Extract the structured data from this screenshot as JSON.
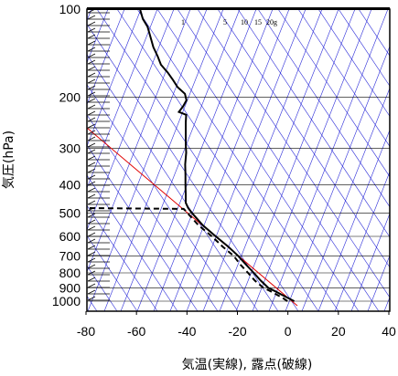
{
  "chart_data": {
    "type": "line",
    "xlabel": "気温(実線), 露点(破線)",
    "ylabel": "気圧(hPa)",
    "x_ticks": [
      -80,
      -60,
      -40,
      -20,
      0,
      20,
      40
    ],
    "y_ticks": [
      100,
      200,
      300,
      400,
      500,
      600,
      700,
      800,
      900,
      1000
    ],
    "xlim": [
      -80,
      40
    ],
    "ylim": [
      1050,
      100
    ],
    "y_scale": "log",
    "mixing_ratio_labels": [
      "1",
      "5",
      "10",
      "15",
      "20g"
    ],
    "colors": {
      "guide_lines": "#2a2ad8",
      "reference_line": "#e00000",
      "temperature": "#000000",
      "dewpoint": "#000000"
    },
    "series": [
      {
        "kind": "temperature",
        "style": "solid",
        "points": [
          [
            2.5,
            1000
          ],
          [
            0,
            975
          ],
          [
            -2.5,
            950
          ],
          [
            -5,
            925
          ],
          [
            -7.8,
            900
          ],
          [
            -10.8,
            850
          ],
          [
            -13.5,
            800
          ],
          [
            -16.6,
            750
          ],
          [
            -19.7,
            700
          ],
          [
            -23.7,
            650
          ],
          [
            -28.6,
            600
          ],
          [
            -33.7,
            550
          ],
          [
            -37.9,
            500
          ],
          [
            -39.5,
            480
          ],
          [
            -40.5,
            460
          ],
          [
            -40.5,
            430
          ],
          [
            -40.6,
            400
          ],
          [
            -40.6,
            370
          ],
          [
            -40.7,
            340
          ],
          [
            -40.3,
            310
          ],
          [
            -40.5,
            290
          ],
          [
            -40.5,
            265
          ],
          [
            -40.5,
            245
          ],
          [
            -40.3,
            230
          ],
          [
            -43.2,
            225
          ],
          [
            -41.5,
            215
          ],
          [
            -40.2,
            205
          ],
          [
            -40.8,
            195
          ],
          [
            -43.7,
            185
          ],
          [
            -45.5,
            175
          ],
          [
            -47.6,
            165
          ],
          [
            -50.3,
            155
          ],
          [
            -51.6,
            145
          ],
          [
            -53.3,
            135
          ],
          [
            -54.4,
            125
          ],
          [
            -55.6,
            115
          ],
          [
            -57.5,
            108
          ],
          [
            -58.6,
            100
          ]
        ]
      },
      {
        "kind": "dewpoint",
        "style": "dashed",
        "points": [
          [
            -0.2,
            1000
          ],
          [
            -2,
            975
          ],
          [
            -4.4,
            950
          ],
          [
            -6.8,
            925
          ],
          [
            -9.7,
            900
          ],
          [
            -13.1,
            850
          ],
          [
            -15.8,
            800
          ],
          [
            -18.8,
            750
          ],
          [
            -21.5,
            700
          ],
          [
            -25.9,
            650
          ],
          [
            -30.1,
            600
          ],
          [
            -35.4,
            550
          ],
          [
            -39.7,
            500
          ],
          [
            -41.3,
            483
          ],
          [
            -80,
            480
          ]
        ]
      }
    ]
  }
}
